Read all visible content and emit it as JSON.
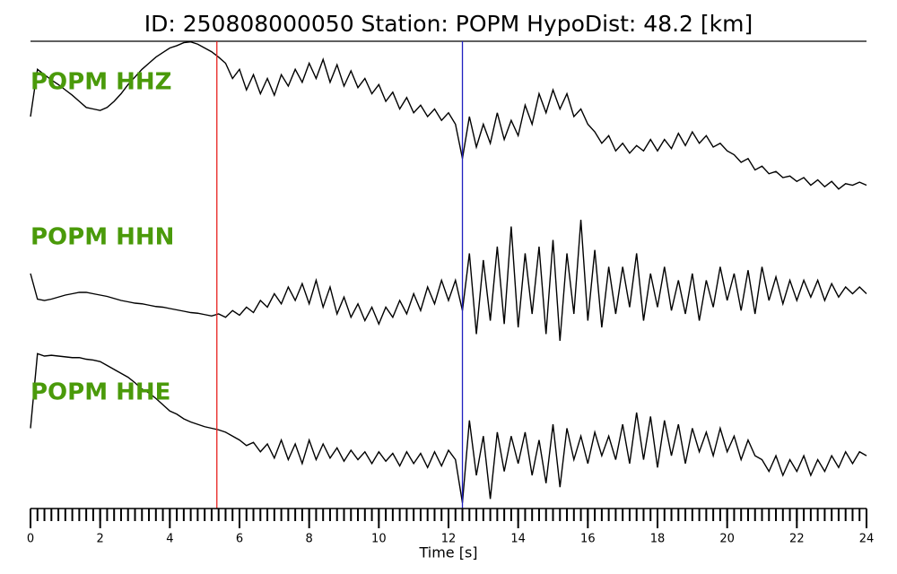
{
  "chart_data": {
    "type": "waveform",
    "title": "ID: 250808000050   Station: POPM   HypoDist:    48.2 [km]",
    "xlabel": "Time [s]",
    "xlim": [
      0,
      24
    ],
    "xticks": [
      0,
      2,
      4,
      6,
      8,
      10,
      12,
      14,
      16,
      18,
      20,
      22,
      24
    ],
    "ylim": [
      -1,
      1
    ],
    "label_color": "#4a9a0a",
    "markers": [
      {
        "x": 5.35,
        "color": "#e8211e"
      },
      {
        "x": 12.4,
        "color": "#1f1fbf"
      }
    ],
    "x": [
      0,
      0.2,
      0.4,
      0.6,
      0.8,
      1,
      1.2,
      1.4,
      1.6,
      1.8,
      2,
      2.2,
      2.4,
      2.6,
      2.8,
      3,
      3.2,
      3.4,
      3.6,
      3.8,
      4,
      4.2,
      4.4,
      4.6,
      4.8,
      5,
      5.2,
      5.4,
      5.6,
      5.8,
      6,
      6.2,
      6.4,
      6.6,
      6.8,
      7,
      7.2,
      7.4,
      7.6,
      7.8,
      8,
      8.2,
      8.4,
      8.6,
      8.8,
      9,
      9.2,
      9.4,
      9.6,
      9.8,
      10,
      10.2,
      10.4,
      10.6,
      10.8,
      11,
      11.2,
      11.4,
      11.6,
      11.8,
      12,
      12.2,
      12.4,
      12.6,
      12.8,
      13,
      13.2,
      13.4,
      13.6,
      13.8,
      14,
      14.2,
      14.4,
      14.6,
      14.8,
      15,
      15.2,
      15.4,
      15.6,
      15.8,
      16,
      16.2,
      16.4,
      16.6,
      16.8,
      17,
      17.2,
      17.4,
      17.6,
      17.8,
      18,
      18.2,
      18.4,
      18.6,
      18.8,
      19,
      19.2,
      19.4,
      19.6,
      19.8,
      20,
      20.2,
      20.4,
      20.6,
      20.8,
      21,
      21.2,
      21.4,
      21.6,
      21.8,
      22,
      22.2,
      22.4,
      22.6,
      22.8,
      23,
      23.2,
      23.4,
      23.6,
      23.8,
      24
    ],
    "series": [
      {
        "name": "POPM HHZ",
        "color": "#000000",
        "values": [
          0,
          0.62,
          0.55,
          0.48,
          0.42,
          0.35,
          0.28,
          0.2,
          0.12,
          0.1,
          0.08,
          0.12,
          0.2,
          0.3,
          0.42,
          0.52,
          0.62,
          0.7,
          0.78,
          0.84,
          0.9,
          0.93,
          0.97,
          0.98,
          0.95,
          0.9,
          0.85,
          0.78,
          0.7,
          0.5,
          0.62,
          0.35,
          0.55,
          0.3,
          0.5,
          0.28,
          0.55,
          0.4,
          0.62,
          0.45,
          0.7,
          0.5,
          0.75,
          0.45,
          0.68,
          0.4,
          0.6,
          0.38,
          0.5,
          0.3,
          0.42,
          0.2,
          0.32,
          0.1,
          0.25,
          0.05,
          0.15,
          0,
          0.1,
          -0.05,
          0.05,
          -0.1,
          -0.55,
          0,
          -0.4,
          -0.1,
          -0.35,
          0.05,
          -0.3,
          -0.05,
          -0.25,
          0.15,
          -0.1,
          0.3,
          0.05,
          0.35,
          0.1,
          0.3,
          0,
          0.1,
          -0.1,
          -0.2,
          -0.35,
          -0.25,
          -0.45,
          -0.35,
          -0.48,
          -0.38,
          -0.45,
          -0.3,
          -0.45,
          -0.3,
          -0.42,
          -0.22,
          -0.38,
          -0.2,
          -0.35,
          -0.25,
          -0.4,
          -0.35,
          -0.45,
          -0.5,
          -0.6,
          -0.55,
          -0.7,
          -0.65,
          -0.75,
          -0.72,
          -0.8,
          -0.78,
          -0.85,
          -0.8,
          -0.9,
          -0.83,
          -0.92,
          -0.85,
          -0.95,
          -0.88,
          -0.9,
          -0.86,
          -0.9
        ]
      },
      {
        "name": "POPM HHN",
        "color": "#000000",
        "values": [
          0.2,
          -0.18,
          -0.2,
          -0.18,
          -0.15,
          -0.12,
          -0.1,
          -0.08,
          -0.08,
          -0.1,
          -0.12,
          -0.14,
          -0.17,
          -0.2,
          -0.22,
          -0.24,
          -0.25,
          -0.27,
          -0.29,
          -0.3,
          -0.32,
          -0.34,
          -0.36,
          -0.38,
          -0.39,
          -0.41,
          -0.43,
          -0.4,
          -0.45,
          -0.35,
          -0.42,
          -0.3,
          -0.38,
          -0.2,
          -0.3,
          -0.1,
          -0.25,
          0,
          -0.2,
          0.05,
          -0.25,
          0.1,
          -0.3,
          0,
          -0.4,
          -0.15,
          -0.45,
          -0.25,
          -0.5,
          -0.3,
          -0.55,
          -0.3,
          -0.45,
          -0.2,
          -0.4,
          -0.1,
          -0.35,
          0,
          -0.25,
          0.1,
          -0.2,
          0.1,
          -0.35,
          0.5,
          -0.7,
          0.4,
          -0.5,
          0.6,
          -0.55,
          0.9,
          -0.6,
          0.5,
          -0.4,
          0.6,
          -0.7,
          0.7,
          -0.8,
          0.5,
          -0.4,
          1,
          -0.5,
          0.55,
          -0.6,
          0.3,
          -0.4,
          0.3,
          -0.3,
          0.5,
          -0.5,
          0.2,
          -0.3,
          0.3,
          -0.35,
          0.1,
          -0.4,
          0.2,
          -0.5,
          0.1,
          -0.3,
          0.3,
          -0.2,
          0.2,
          -0.35,
          0.25,
          -0.4,
          0.3,
          -0.2,
          0.15,
          -0.25,
          0.1,
          -0.2,
          0.1,
          -0.15,
          0.1,
          -0.2,
          0.05,
          -0.15,
          0,
          -0.1,
          0,
          -0.1
        ]
      },
      {
        "name": "POPM HHE",
        "color": "#000000",
        "values": [
          0,
          0.95,
          0.92,
          0.93,
          0.92,
          0.91,
          0.9,
          0.9,
          0.88,
          0.87,
          0.85,
          0.8,
          0.75,
          0.7,
          0.65,
          0.58,
          0.5,
          0.45,
          0.38,
          0.3,
          0.22,
          0.18,
          0.12,
          0.08,
          0.05,
          0.02,
          0,
          -0.02,
          -0.05,
          -0.1,
          -0.15,
          -0.22,
          -0.18,
          -0.3,
          -0.2,
          -0.38,
          -0.15,
          -0.4,
          -0.2,
          -0.45,
          -0.15,
          -0.4,
          -0.2,
          -0.38,
          -0.25,
          -0.42,
          -0.28,
          -0.4,
          -0.3,
          -0.45,
          -0.3,
          -0.42,
          -0.32,
          -0.48,
          -0.3,
          -0.45,
          -0.32,
          -0.5,
          -0.3,
          -0.48,
          -0.28,
          -0.4,
          -0.95,
          0.1,
          -0.6,
          -0.1,
          -0.9,
          -0.05,
          -0.55,
          -0.1,
          -0.45,
          -0.05,
          -0.6,
          -0.15,
          -0.7,
          0.05,
          -0.75,
          0,
          -0.4,
          -0.1,
          -0.45,
          -0.05,
          -0.35,
          -0.1,
          -0.4,
          0.05,
          -0.45,
          0.2,
          -0.4,
          0.15,
          -0.5,
          0.1,
          -0.35,
          0.05,
          -0.45,
          0,
          -0.3,
          -0.05,
          -0.35,
          0,
          -0.3,
          -0.1,
          -0.4,
          -0.15,
          -0.35,
          -0.4,
          -0.55,
          -0.35,
          -0.6,
          -0.4,
          -0.55,
          -0.35,
          -0.6,
          -0.4,
          -0.55,
          -0.35,
          -0.5,
          -0.3,
          -0.45,
          -0.3,
          -0.35
        ]
      }
    ]
  }
}
